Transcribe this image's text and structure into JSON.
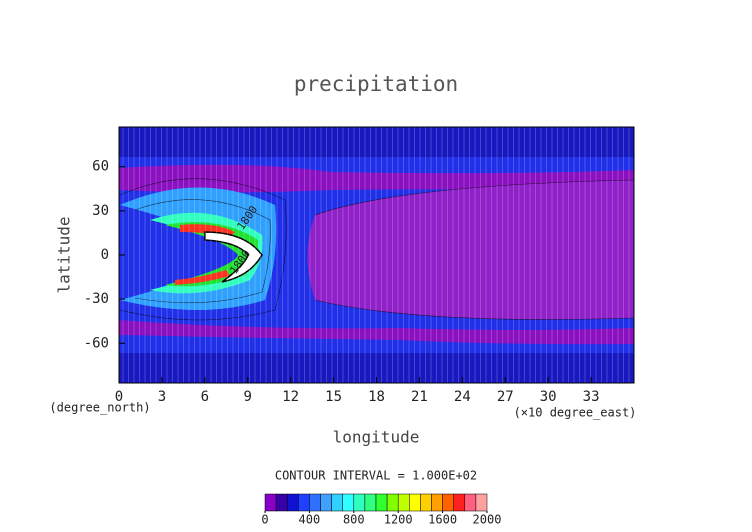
{
  "chart_data": {
    "type": "contour",
    "title": "precipitation",
    "x_label": "longitude",
    "y_label": "latitude",
    "x_unit": "(×10 degree_east)",
    "y_unit": "(degree_north)",
    "xlim": [
      0,
      36
    ],
    "xticks": [
      0,
      3,
      6,
      9,
      12,
      15,
      18,
      21,
      24,
      27,
      30,
      33
    ],
    "ylim": [
      -87,
      87
    ],
    "yticks": [
      -60,
      -30,
      0,
      30,
      60
    ],
    "contour_labels": [
      {
        "text": "1800",
        "x": 8.5,
        "y": -5
      },
      {
        "text": "1800",
        "x": 9,
        "y": 25
      }
    ],
    "colorbar_title": "CONTOUR INTERVAL = 1.000E+02",
    "clim": [
      0,
      2000
    ],
    "cticks": [
      0,
      400,
      800,
      1200,
      1600,
      2000
    ],
    "colors": [
      "#8800c8",
      "#3a00a8",
      "#1010d0",
      "#2040ff",
      "#3070ff",
      "#40a0ff",
      "#30d0ff",
      "#30ffff",
      "#30ffc0",
      "#30ff80",
      "#30ff30",
      "#80ff00",
      "#c0ff00",
      "#ffff00",
      "#ffd000",
      "#ffa000",
      "#ff6000",
      "#ff2020",
      "#ff6080",
      "#ffa0a0"
    ]
  }
}
